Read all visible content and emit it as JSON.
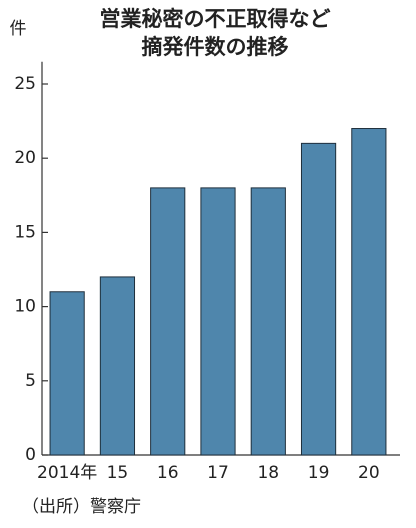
{
  "chart_data": {
    "type": "bar",
    "title": [
      "営業秘密の不正取得など",
      "摘発件数の推移"
    ],
    "y_label": "件",
    "categories": [
      "2014年",
      "15",
      "16",
      "17",
      "18",
      "19",
      "20"
    ],
    "values": [
      11,
      12,
      18,
      18,
      18,
      21,
      22
    ],
    "color": "#4f86ac",
    "ylim": [
      0,
      26.5
    ],
    "yticks": [
      0,
      5,
      10,
      15,
      20,
      25
    ],
    "grid": false,
    "source": "（出所）警察庁"
  }
}
